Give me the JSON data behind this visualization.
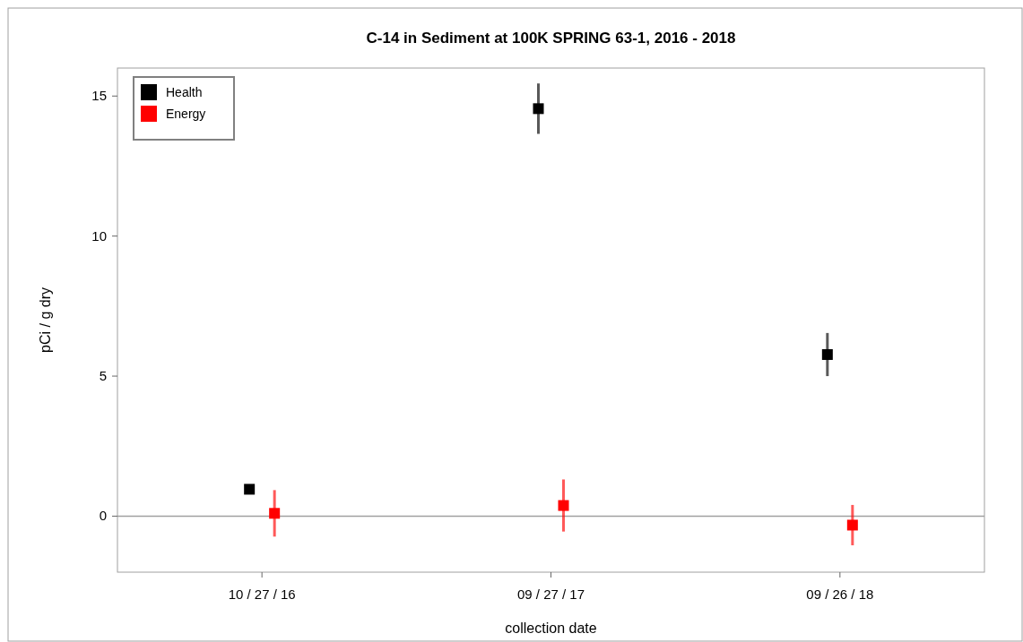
{
  "chart_data": {
    "type": "scatter",
    "title": "C-14 in Sediment at 100K SPRING 63-1, 2016 - 2018",
    "xlabel": "collection date",
    "ylabel": "pCi / g dry",
    "categories": [
      "10 / 27 / 16",
      "09 / 27 / 17",
      "09 / 26 / 18"
    ],
    "series": [
      {
        "name": "Health",
        "color": "#000000",
        "values": [
          0.96,
          14.55,
          5.77
        ],
        "errors": [
          0.15,
          0.9,
          0.77
        ]
      },
      {
        "name": "Energy",
        "color": "#ff0000",
        "values": [
          0.1,
          0.38,
          -0.32
        ],
        "errors": [
          0.83,
          0.93,
          0.72
        ]
      }
    ],
    "ylim": [
      -2,
      16
    ],
    "yticks": [
      0,
      5,
      10,
      15
    ],
    "grid": false,
    "legend": "top left",
    "marker": "square",
    "ref_lines": [
      {
        "axis": "y",
        "value": 0,
        "color": "#a0a0a0"
      }
    ]
  }
}
